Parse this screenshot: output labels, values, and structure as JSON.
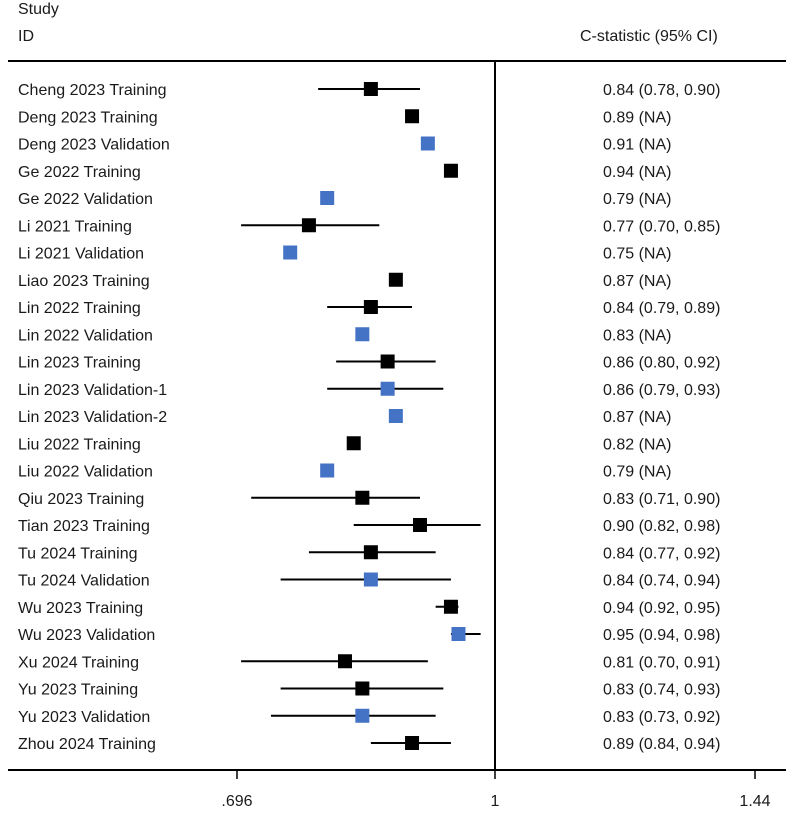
{
  "header": {
    "study_line1": "Study",
    "study_line2": "ID",
    "effect_label": "C-statistic (95% CI)"
  },
  "colors": {
    "training": "#000000",
    "validation": "#4472C4",
    "lines": "#000000"
  },
  "chart_data": {
    "type": "forest",
    "x_axis": {
      "scale": "log",
      "range": [
        0.696,
        1.44
      ],
      "ticks": [
        0.696,
        1,
        1.44
      ],
      "tick_labels": [
        ".696",
        "1",
        "1.44"
      ],
      "null_line": 1
    },
    "grid": false,
    "rows": [
      {
        "study": "Cheng 2023 Training",
        "est": 0.84,
        "lo": 0.78,
        "hi": 0.9,
        "label": "0.84 (0.78, 0.90)",
        "group": "training"
      },
      {
        "study": "Deng 2023 Training",
        "est": 0.89,
        "lo": null,
        "hi": null,
        "label": "0.89 (NA)",
        "group": "training"
      },
      {
        "study": "Deng 2023 Validation",
        "est": 0.91,
        "lo": null,
        "hi": null,
        "label": "0.91 (NA)",
        "group": "validation"
      },
      {
        "study": "Ge 2022 Training",
        "est": 0.94,
        "lo": null,
        "hi": null,
        "label": "0.94 (NA)",
        "group": "training"
      },
      {
        "study": "Ge 2022 Validation",
        "est": 0.79,
        "lo": null,
        "hi": null,
        "label": "0.79 (NA)",
        "group": "validation"
      },
      {
        "study": "Li 2021 Training",
        "est": 0.77,
        "lo": 0.7,
        "hi": 0.85,
        "label": "0.77 (0.70, 0.85)",
        "group": "training"
      },
      {
        "study": "Li 2021 Validation",
        "est": 0.75,
        "lo": null,
        "hi": null,
        "label": "0.75 (NA)",
        "group": "validation"
      },
      {
        "study": "Liao 2023 Training",
        "est": 0.87,
        "lo": null,
        "hi": null,
        "label": "0.87 (NA)",
        "group": "training"
      },
      {
        "study": "Lin 2022 Training",
        "est": 0.84,
        "lo": 0.79,
        "hi": 0.89,
        "label": "0.84 (0.79, 0.89)",
        "group": "training"
      },
      {
        "study": "Lin 2022 Validation",
        "est": 0.83,
        "lo": null,
        "hi": null,
        "label": "0.83 (NA)",
        "group": "validation"
      },
      {
        "study": "Lin 2023 Training",
        "est": 0.86,
        "lo": 0.8,
        "hi": 0.92,
        "label": "0.86 (0.80, 0.92)",
        "group": "training"
      },
      {
        "study": "Lin 2023 Validation-1",
        "est": 0.86,
        "lo": 0.79,
        "hi": 0.93,
        "label": "0.86 (0.79, 0.93)",
        "group": "validation"
      },
      {
        "study": "Lin 2023 Validation-2",
        "est": 0.87,
        "lo": null,
        "hi": null,
        "label": "0.87 (NA)",
        "group": "validation"
      },
      {
        "study": "Liu 2022 Training",
        "est": 0.82,
        "lo": null,
        "hi": null,
        "label": "0.82 (NA)",
        "group": "training"
      },
      {
        "study": "Liu 2022 Validation",
        "est": 0.79,
        "lo": null,
        "hi": null,
        "label": "0.79 (NA)",
        "group": "validation"
      },
      {
        "study": "Qiu 2023 Training",
        "est": 0.83,
        "lo": 0.71,
        "hi": 0.9,
        "label": "0.83 (0.71, 0.90)",
        "group": "training"
      },
      {
        "study": "Tian 2023 Training",
        "est": 0.9,
        "lo": 0.82,
        "hi": 0.98,
        "label": "0.90 (0.82, 0.98)",
        "group": "training"
      },
      {
        "study": "Tu 2024 Training",
        "est": 0.84,
        "lo": 0.77,
        "hi": 0.92,
        "label": "0.84 (0.77, 0.92)",
        "group": "training"
      },
      {
        "study": "Tu 2024 Validation",
        "est": 0.84,
        "lo": 0.74,
        "hi": 0.94,
        "label": "0.84 (0.74, 0.94)",
        "group": "validation"
      },
      {
        "study": "Wu 2023 Training",
        "est": 0.94,
        "lo": 0.92,
        "hi": 0.95,
        "label": "0.94 (0.92, 0.95)",
        "group": "training"
      },
      {
        "study": "Wu 2023 Validation",
        "est": 0.95,
        "lo": 0.94,
        "hi": 0.98,
        "label": "0.95 (0.94, 0.98)",
        "group": "validation"
      },
      {
        "study": "Xu 2024 Training",
        "est": 0.81,
        "lo": 0.7,
        "hi": 0.91,
        "label": "0.81 (0.70, 0.91)",
        "group": "training"
      },
      {
        "study": "Yu 2023 Training",
        "est": 0.83,
        "lo": 0.74,
        "hi": 0.93,
        "label": "0.83 (0.74, 0.93)",
        "group": "training"
      },
      {
        "study": "Yu 2023 Validation",
        "est": 0.83,
        "lo": 0.73,
        "hi": 0.92,
        "label": "0.83 (0.73, 0.92)",
        "group": "validation"
      },
      {
        "study": "Zhou 2024 Training",
        "est": 0.89,
        "lo": 0.84,
        "hi": 0.94,
        "label": "0.89 (0.84, 0.94)",
        "group": "training"
      }
    ]
  }
}
